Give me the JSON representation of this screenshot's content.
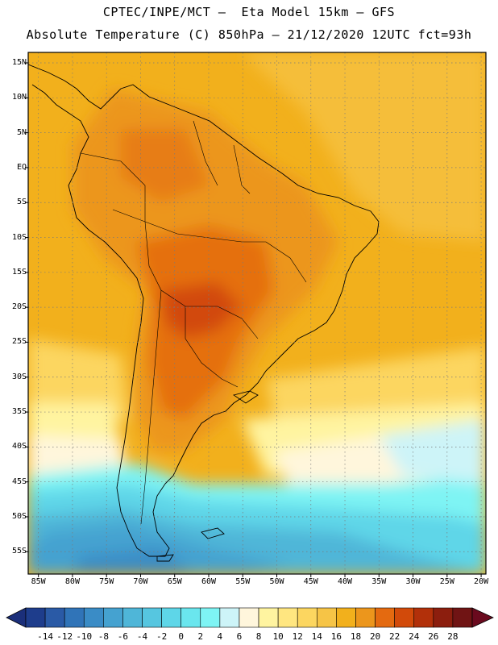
{
  "header": {
    "line1": "CPTEC/INPE/MCT –  Eta Model 15km – GFS",
    "line2": "Absolute Temperature (C) 850hPa – 21/12/2020 12UTC fct=93h"
  },
  "map": {
    "lat_labels": [
      "15N",
      "10N",
      "5N",
      "EQ",
      "5S",
      "10S",
      "15S",
      "20S",
      "25S",
      "30S",
      "35S",
      "40S",
      "45S",
      "50S",
      "55S"
    ],
    "lon_labels": [
      "85W",
      "80W",
      "75W",
      "70W",
      "65W",
      "60W",
      "55W",
      "50W",
      "45W",
      "40W",
      "35W",
      "30W",
      "25W",
      "20W"
    ],
    "lat_values": [
      15,
      10,
      5,
      0,
      -5,
      -10,
      -15,
      -20,
      -25,
      -30,
      -35,
      -40,
      -45,
      -50,
      -55
    ],
    "lon_values": [
      -85,
      -80,
      -75,
      -70,
      -65,
      -60,
      -55,
      -50,
      -45,
      -40,
      -35,
      -30,
      -25,
      -20
    ]
  },
  "colorbar": {
    "labels": [
      "-14",
      "-12",
      "-10",
      "-8",
      "-6",
      "-4",
      "-2",
      "0",
      "2",
      "4",
      "6",
      "8",
      "10",
      "12",
      "14",
      "16",
      "18",
      "20",
      "22",
      "24",
      "26",
      "28"
    ],
    "colors": [
      "#1e3d8c",
      "#2a5aa6",
      "#3074b8",
      "#3a8cc6",
      "#45a2d0",
      "#4fb6d8",
      "#56c6e0",
      "#5ed6e8",
      "#6ae6ee",
      "#7ef4f4",
      "#cdf4f8",
      "#fff6dc",
      "#fff4a0",
      "#ffe680",
      "#fcd660",
      "#f6c446",
      "#f2b01c",
      "#ec961c",
      "#e46a10",
      "#d24a0a",
      "#b2300a",
      "#8c1e0e",
      "#701414"
    ],
    "left_arrow_color": "#1b2f7a",
    "right_arrow_color": "#6a0a1e"
  }
}
